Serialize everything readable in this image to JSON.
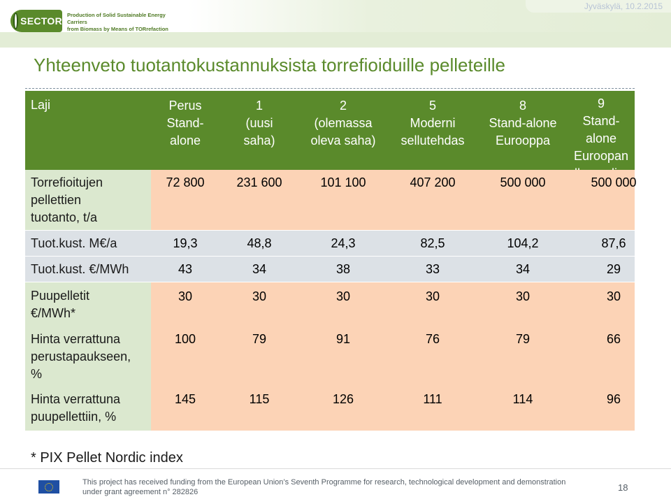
{
  "header": {
    "logo_text": "SECTOR",
    "tagline": [
      "Production of Solid Sustainable Energy Carriers",
      "from Biomass by Means of TORrefaction"
    ],
    "date": "Jyväskylä, 10.2.2015"
  },
  "slide": {
    "title": "Yhteenveto tuotantokustannuksista torrefioiduille pelleteille"
  },
  "table": {
    "corner_label": "Laji",
    "columns": [
      [
        "Perus",
        "Stand-",
        "alone"
      ],
      [
        "1",
        "(uusi",
        "saha)"
      ],
      [
        "2",
        "(olemassa",
        "oleva saha)"
      ],
      [
        "5",
        "Moderni",
        "sellutehdas"
      ],
      [
        "8",
        "Stand-alone",
        "Eurooppa"
      ],
      [
        "9",
        "Stand-alone",
        "Euroopan",
        "ulkopuolinen"
      ]
    ],
    "rows": [
      {
        "label": [
          "Torrefioitujen",
          "pellettien",
          "tuotanto, t/a"
        ],
        "values": [
          "72 800",
          "231 600",
          "101 100",
          "407 200",
          "500 000",
          "500 000"
        ]
      },
      {
        "label": [
          "Tuot.kust. M€/a"
        ],
        "values": [
          "19,3",
          "48,8",
          "24,3",
          "82,5",
          "104,2",
          "87,6"
        ]
      },
      {
        "label": [
          "Tuot.kust. €/MWh"
        ],
        "values": [
          "43",
          "34",
          "38",
          "33",
          "34",
          "29"
        ]
      },
      {
        "label": [
          "Puupelletit",
          "€/MWh*"
        ],
        "values": [
          "30",
          "30",
          "30",
          "30",
          "30",
          "30"
        ]
      },
      {
        "label": [
          "Hinta verrattuna",
          "perustapaukseen,",
          "%"
        ],
        "values": [
          "100",
          "79",
          "91",
          "76",
          "79",
          "66"
        ]
      },
      {
        "label": [
          "Hinta verrattuna",
          "puupellettiin, %"
        ],
        "values": [
          "145",
          "115",
          "126",
          "111",
          "114",
          "96"
        ]
      }
    ]
  },
  "footnote": "* PIX Pellet Nordic index",
  "footer": {
    "flag_icon": "eu-flag-icon",
    "funding_lines": [
      "This project has received funding from the European Union’s Seventh Programme for research, technological development and demonstration",
      "under grant agreement n° 282826"
    ],
    "page_number": "18"
  }
}
